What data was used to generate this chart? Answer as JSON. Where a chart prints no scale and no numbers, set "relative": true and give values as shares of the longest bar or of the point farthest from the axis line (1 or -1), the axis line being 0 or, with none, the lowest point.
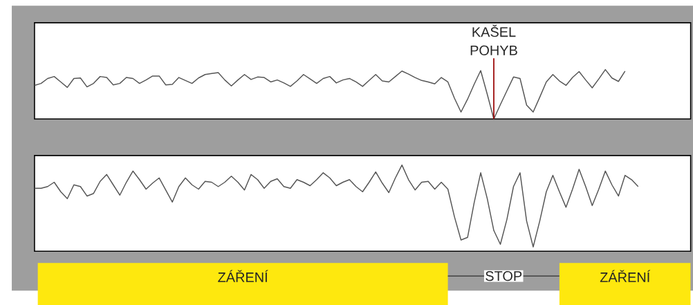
{
  "chart_data": [
    {
      "type": "line",
      "relative": true,
      "color": "#555555",
      "categories": [
        null,
        null,
        null,
        null,
        null,
        null,
        null,
        null,
        null,
        null,
        null,
        null,
        null,
        null,
        null,
        null,
        null,
        null,
        null,
        null,
        null,
        null,
        null,
        null,
        null,
        null,
        null,
        null,
        null,
        null,
        null,
        null,
        null,
        null,
        null,
        null,
        null,
        null,
        null,
        null,
        null,
        null,
        null,
        null,
        null,
        null,
        null,
        null,
        null,
        null,
        null,
        null,
        null,
        null,
        null,
        null,
        null,
        null,
        null,
        null,
        null,
        null,
        null,
        null,
        null,
        null,
        null,
        null,
        null,
        null,
        null,
        null,
        null,
        null,
        null,
        null,
        null,
        null,
        null,
        null,
        null,
        null,
        null,
        null,
        null,
        null,
        null,
        null,
        null,
        null,
        null,
        null,
        null,
        null,
        null,
        null,
        null,
        null,
        null,
        null,
        null
      ],
      "values": [
        0.68,
        0.72,
        0.82,
        0.86,
        0.75,
        0.64,
        0.82,
        0.83,
        0.65,
        0.72,
        0.86,
        0.84,
        0.69,
        0.72,
        0.84,
        0.82,
        0.72,
        0.79,
        0.87,
        0.87,
        0.69,
        0.7,
        0.84,
        0.78,
        0.72,
        0.83,
        0.9,
        0.92,
        0.94,
        0.79,
        0.67,
        0.79,
        0.9,
        0.8,
        0.85,
        0.84,
        0.75,
        0.79,
        0.73,
        0.66,
        0.77,
        0.9,
        0.81,
        0.72,
        0.82,
        0.86,
        0.73,
        0.79,
        0.82,
        0.75,
        0.66,
        0.78,
        0.9,
        0.77,
        0.75,
        0.86,
        0.97,
        0.91,
        0.84,
        0.78,
        0.75,
        0.71,
        0.84,
        0.75,
        0.42,
        0.14,
        0.4,
        0.7,
        0.98,
        0.5,
        0,
        0.29,
        0.57,
        0.85,
        0.82,
        0.28,
        0.14,
        0.44,
        0.75,
        0.9,
        0.77,
        0.68,
        0.84,
        0.96,
        0.79,
        0.63,
        0.81,
        1,
        0.83,
        0.76,
        0.97,
        null,
        null,
        null,
        null,
        null,
        null,
        null,
        null,
        null,
        null
      ],
      "annotations": [
        "KAŠEL POHYB"
      ]
    },
    {
      "type": "line",
      "relative": true,
      "color": "#555555",
      "categories": [
        null,
        null,
        null,
        null,
        null,
        null,
        null,
        null,
        null,
        null,
        null,
        null,
        null,
        null,
        null,
        null,
        null,
        null,
        null,
        null,
        null,
        null,
        null,
        null,
        null,
        null,
        null,
        null,
        null,
        null,
        null,
        null,
        null,
        null,
        null,
        null,
        null,
        null,
        null,
        null,
        null,
        null,
        null,
        null,
        null,
        null,
        null,
        null,
        null,
        null,
        null,
        null,
        null,
        null,
        null,
        null,
        null,
        null,
        null,
        null,
        null,
        null,
        null,
        null,
        null,
        null,
        null,
        null,
        null,
        null,
        null,
        null,
        null,
        null,
        null,
        null,
        null,
        null,
        null,
        null,
        null,
        null,
        null,
        null,
        null,
        null,
        null,
        null,
        null,
        null,
        null,
        null,
        null,
        null,
        null,
        null,
        null,
        null,
        null,
        null,
        null
      ],
      "values": [
        0.73,
        0.73,
        0.75,
        0.8,
        0.69,
        0.61,
        0.77,
        0.75,
        0.64,
        0.67,
        0.81,
        0.89,
        0.77,
        0.65,
        0.8,
        0.93,
        0.83,
        0.72,
        0.79,
        0.85,
        0.71,
        0.57,
        0.75,
        0.85,
        0.77,
        0.72,
        0.81,
        0.8,
        0.75,
        0.8,
        0.87,
        0.8,
        0.71,
        0.89,
        0.83,
        0.73,
        0.81,
        0.84,
        0.75,
        0.73,
        0.83,
        0.8,
        0.76,
        0.83,
        0.91,
        0.85,
        0.76,
        0.8,
        0.83,
        0.75,
        0.69,
        0.8,
        0.92,
        0.79,
        0.68,
        0.85,
        1,
        0.83,
        0.71,
        0.8,
        0.81,
        0.72,
        0.8,
        0.72,
        0.4,
        0.13,
        0.16,
        0.56,
        0.91,
        0.61,
        0.24,
        0.08,
        0.37,
        0.75,
        0.91,
        0.35,
        0.05,
        0.35,
        0.69,
        0.88,
        0.69,
        0.51,
        0.72,
        0.95,
        0.75,
        0.53,
        0.72,
        0.93,
        0.77,
        0.64,
        0.88,
        0.83,
        0.75,
        null,
        null,
        null,
        null,
        null,
        null,
        null,
        null
      ],
      "annotations": [
        "ZÁŘENÍ",
        "STOP",
        "ZÁŘENÍ"
      ]
    }
  ]
}
